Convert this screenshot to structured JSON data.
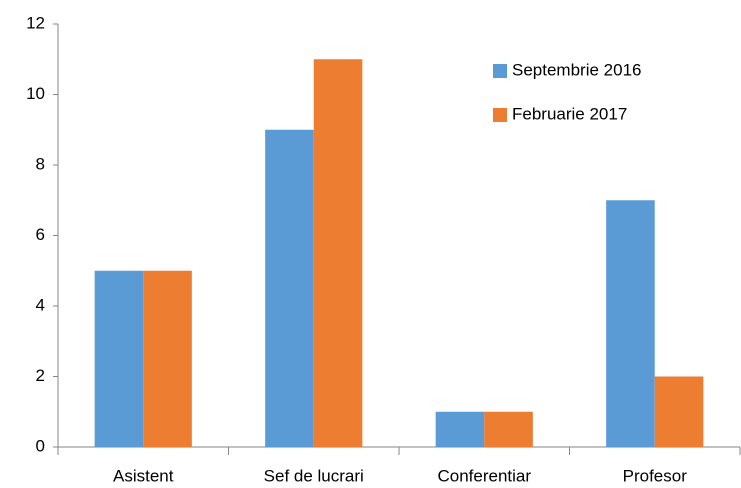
{
  "chart_data": {
    "type": "bar",
    "categories": [
      "Asistent",
      "Sef de lucrari",
      "Conferentiar",
      "Profesor"
    ],
    "series": [
      {
        "name": "Septembrie 2016",
        "color": "#5b9bd5",
        "values": [
          5,
          9,
          1,
          7
        ]
      },
      {
        "name": "Februarie 2017",
        "color": "#ed7d31",
        "values": [
          5,
          11,
          1,
          2
        ]
      }
    ],
    "ylim": [
      0,
      12
    ],
    "yticks": [
      0,
      2,
      4,
      6,
      8,
      10,
      12
    ],
    "grid": false,
    "legend": "top-right"
  }
}
